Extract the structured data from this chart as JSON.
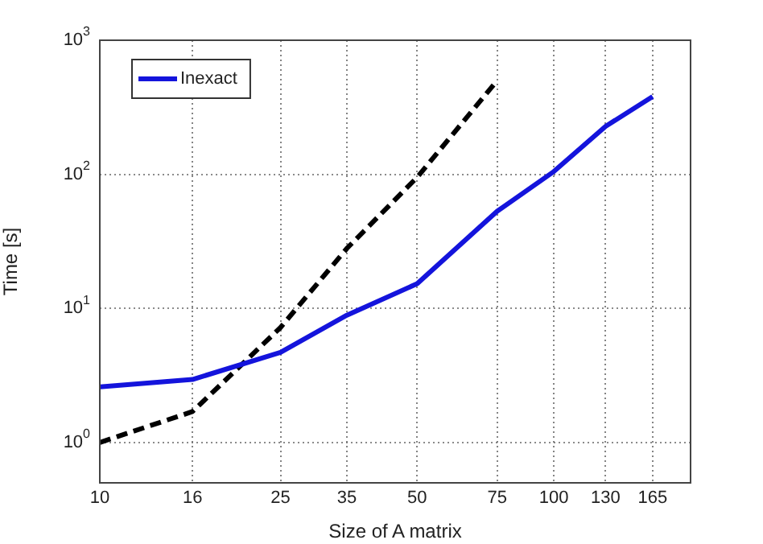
{
  "chart_data": {
    "type": "line",
    "xlabel": "Size of A matrix",
    "ylabel": "Time [s]",
    "log": "xy",
    "grid": true,
    "legend": "top left",
    "marker": "none",
    "xlim": [
      10,
      200
    ],
    "xticks": [
      10,
      16,
      25,
      35,
      50,
      75,
      100,
      130,
      165
    ],
    "ylim": [
      0.5,
      1000
    ],
    "yticks": [
      {
        "value": 1,
        "label": "10$^{0}$"
      },
      {
        "value": 10,
        "label": "10$^{1}$"
      },
      {
        "value": 100,
        "label": "10$^{2}$"
      },
      {
        "value": 1000,
        "label": "10$^{3}$"
      }
    ],
    "series": [
      {
        "name": "Inexact",
        "color": "#1414dc",
        "line_style": "solid",
        "x": [
          10,
          16,
          25,
          35,
          50,
          75,
          100,
          130,
          165
        ],
        "values": [
          2.6,
          2.95,
          4.7,
          8.9,
          15.3,
          53,
          105,
          228,
          380
        ]
      },
      {
        "color": "#000000",
        "line_style": "dashed",
        "x": [
          10,
          16,
          25,
          35,
          50,
          75
        ],
        "values": [
          1.0,
          1.7,
          7.2,
          28,
          95,
          500
        ]
      }
    ]
  }
}
